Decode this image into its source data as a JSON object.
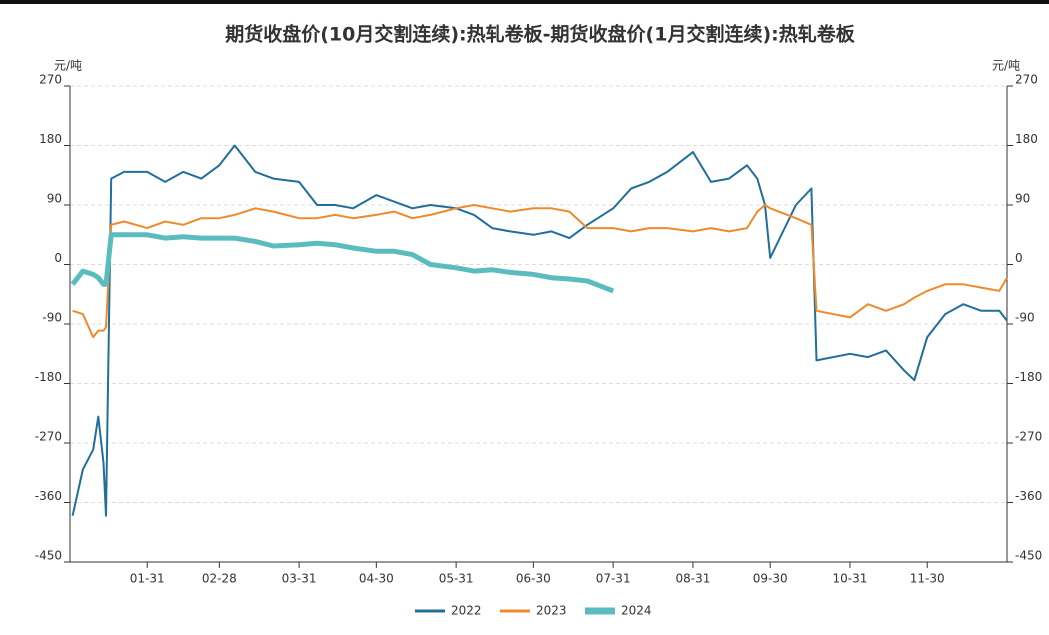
{
  "chart_data": {
    "type": "line",
    "title": "期货收盘价(10月交割连续):热轧卷板-期货收盘价(1月交割连续):热轧卷板",
    "y_label": "元/吨",
    "y2_label": "元/吨",
    "x": [
      "01-02",
      "01-06",
      "01-10",
      "01-12",
      "01-14",
      "01-15",
      "01-17",
      "01-22",
      "01-31",
      "02-07",
      "02-14",
      "02-21",
      "02-28",
      "03-06",
      "03-14",
      "03-21",
      "03-31",
      "04-07",
      "04-14",
      "04-21",
      "04-30",
      "05-07",
      "05-14",
      "05-21",
      "05-31",
      "06-07",
      "06-14",
      "06-21",
      "06-30",
      "07-07",
      "07-14",
      "07-21",
      "07-31",
      "08-07",
      "08-14",
      "08-21",
      "08-31",
      "09-07",
      "09-14",
      "09-21",
      "09-25",
      "09-28",
      "09-30",
      "10-10",
      "10-16",
      "10-18",
      "10-31",
      "11-07",
      "11-14",
      "11-21",
      "11-25",
      "11-30",
      "12-07",
      "12-14",
      "12-21",
      "12-28",
      "12-31"
    ],
    "xlim": [
      "01-01",
      "12-31"
    ],
    "xticks": [
      "01-31",
      "02-28",
      "03-31",
      "04-30",
      "05-31",
      "06-30",
      "07-31",
      "08-31",
      "09-30",
      "10-31",
      "11-30"
    ],
    "ylim": [
      -450,
      270
    ],
    "yticks": [
      -450,
      -360,
      -270,
      -180,
      -90,
      0,
      90,
      180,
      270
    ],
    "y2lim": [
      -450,
      270
    ],
    "y2ticks": [
      -450,
      -360,
      -270,
      -180,
      -90,
      0,
      90,
      180,
      270
    ],
    "grid": true,
    "legend": "bottom",
    "series": [
      {
        "name": "2022",
        "color": "#1f6e9c",
        "values": [
          -380,
          -310,
          -280,
          -230,
          -300,
          -380,
          130,
          140,
          140,
          125,
          140,
          130,
          150,
          180,
          140,
          130,
          125,
          90,
          90,
          85,
          105,
          95,
          85,
          90,
          85,
          75,
          55,
          50,
          45,
          50,
          40,
          60,
          85,
          115,
          125,
          140,
          170,
          125,
          130,
          150,
          130,
          90,
          10,
          90,
          115,
          -145,
          -135,
          -140,
          -130,
          -160,
          -175,
          -110,
          -75,
          -60,
          -70,
          -70,
          -85
        ]
      },
      {
        "name": "2023",
        "color": "#ef8a2c",
        "values": [
          -70,
          -75,
          -110,
          -100,
          -100,
          -95,
          60,
          65,
          55,
          65,
          60,
          70,
          70,
          75,
          85,
          80,
          70,
          70,
          75,
          70,
          75,
          80,
          70,
          75,
          85,
          90,
          85,
          80,
          85,
          85,
          80,
          55,
          55,
          50,
          55,
          55,
          50,
          55,
          50,
          55,
          80,
          90,
          85,
          70,
          60,
          -70,
          -80,
          -60,
          -70,
          -60,
          -50,
          -40,
          -30,
          -30,
          -35,
          -40,
          -20
        ]
      },
      {
        "name": "2024",
        "color": "#5bbcc0",
        "values": [
          -30,
          -10,
          -15,
          -20,
          -30,
          -30,
          45,
          45,
          45,
          40,
          42,
          40,
          40,
          40,
          35,
          28,
          30,
          32,
          30,
          25,
          20,
          20,
          15,
          0,
          -5,
          -10,
          -8,
          -12,
          -15,
          -20,
          -22,
          -25,
          -40,
          null,
          null,
          null,
          null,
          null,
          null,
          null,
          null,
          null,
          null,
          null,
          null,
          null,
          null,
          null,
          null,
          null,
          null,
          null,
          null,
          null,
          null,
          null,
          null
        ]
      }
    ]
  }
}
